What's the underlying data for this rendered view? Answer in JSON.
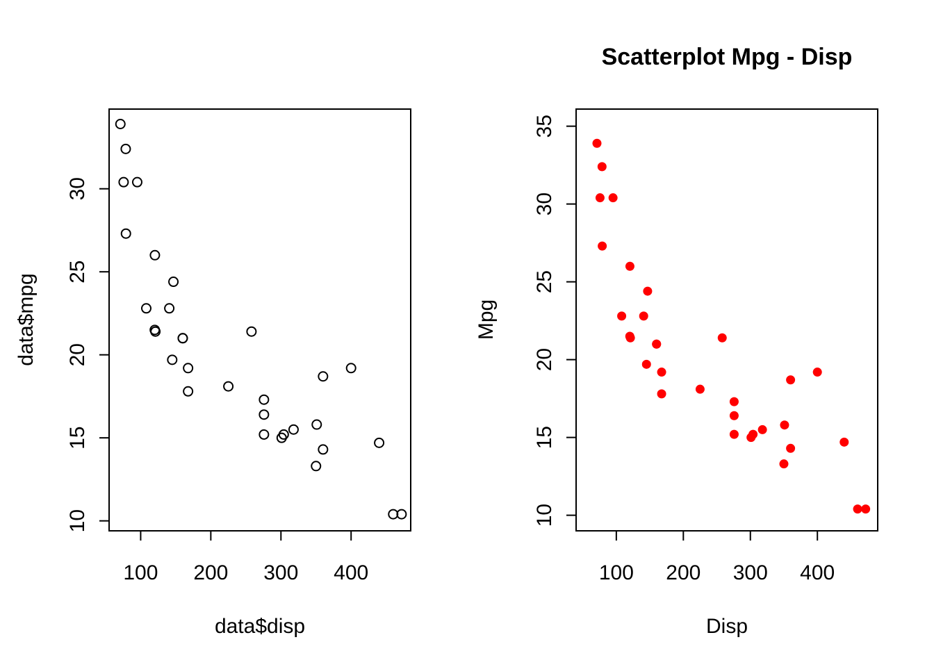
{
  "chart_data": [
    {
      "type": "scatter",
      "title": "",
      "xlabel": "data$disp",
      "ylabel": "data$mpg",
      "xticks": [
        "100",
        "200",
        "300",
        "400"
      ],
      "yticks": [
        "10",
        "15",
        "20",
        "25",
        "30"
      ],
      "xlim": [
        55,
        485
      ],
      "ylim": [
        9.4,
        34.8
      ],
      "marker": "open-circle",
      "color": "#000000",
      "x": [
        160,
        160,
        108,
        258,
        360,
        225,
        360,
        146.7,
        140.8,
        167.6,
        167.6,
        275.8,
        275.8,
        275.8,
        472,
        460,
        440,
        78.7,
        75.7,
        71.1,
        120.1,
        318,
        304,
        350,
        400,
        79,
        120.3,
        95.1,
        351,
        145,
        301,
        121
      ],
      "y": [
        21,
        21,
        22.8,
        21.4,
        18.7,
        18.1,
        14.3,
        24.4,
        22.8,
        19.2,
        17.8,
        16.4,
        17.3,
        15.2,
        10.4,
        10.4,
        14.7,
        32.4,
        30.4,
        33.9,
        21.5,
        15.5,
        15.2,
        13.3,
        19.2,
        27.3,
        26,
        30.4,
        15.8,
        19.7,
        15,
        21.4
      ]
    },
    {
      "type": "scatter",
      "title": "Scatterplot Mpg - Disp",
      "xlabel": "Disp",
      "ylabel": "Mpg",
      "xticks": [
        "100",
        "200",
        "300",
        "400"
      ],
      "yticks": [
        "10",
        "15",
        "20",
        "25",
        "30",
        "35"
      ],
      "xlim": [
        40,
        490
      ],
      "ylim": [
        9.0,
        36.1
      ],
      "marker": "filled-circle",
      "color": "#ff0000",
      "x": [
        160,
        160,
        108,
        258,
        360,
        225,
        360,
        146.7,
        140.8,
        167.6,
        167.6,
        275.8,
        275.8,
        275.8,
        472,
        460,
        440,
        78.7,
        75.7,
        71.1,
        120.1,
        318,
        304,
        350,
        400,
        79,
        120.3,
        95.1,
        351,
        145,
        301,
        121
      ],
      "y": [
        21,
        21,
        22.8,
        21.4,
        18.7,
        18.1,
        14.3,
        24.4,
        22.8,
        19.2,
        17.8,
        16.4,
        17.3,
        15.2,
        10.4,
        10.4,
        14.7,
        32.4,
        30.4,
        33.9,
        21.5,
        15.5,
        15.2,
        13.3,
        19.2,
        27.3,
        26,
        30.4,
        15.8,
        19.7,
        15,
        21.4
      ]
    }
  ]
}
